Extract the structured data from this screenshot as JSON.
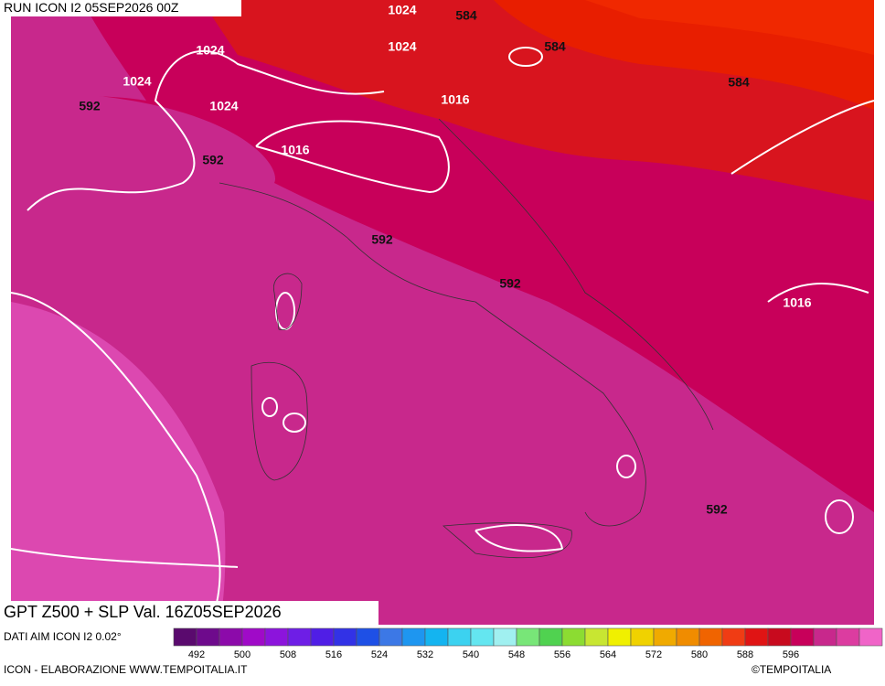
{
  "header": {
    "title": "RUN ICON I2 05SEP2026 00Z"
  },
  "contours": {
    "labels": [
      1024,
      584,
      1024,
      584,
      1024,
      1024,
      584,
      592,
      1024,
      592,
      1016,
      1016,
      592,
      592,
      1016,
      592
    ]
  },
  "footer": {
    "title": "GPT Z500 + SLP Val. 16Z05SEP2026",
    "source": "DATI AIM ICON I2 0.02°",
    "credit": "ICON - ELABORAZIONE WWW.TEMPOITALIA.IT",
    "copyright": "©TEMPOITALIA"
  },
  "colorbar": {
    "colors": [
      "#5a0a6e",
      "#6e0a8c",
      "#8c0aaa",
      "#a00ac8",
      "#8c14dc",
      "#6e1ee6",
      "#501ee6",
      "#3232e6",
      "#1e50e6",
      "#3c78e6",
      "#1e96f0",
      "#14b4f0",
      "#3cd2f0",
      "#64e6f0",
      "#a0f0f0",
      "#78e678",
      "#50d250",
      "#8cdc32",
      "#c8e632",
      "#f0f000",
      "#f0d200",
      "#f0aa00",
      "#f08c00",
      "#f06400",
      "#f03c14",
      "#e01414",
      "#c80a1e",
      "#c8005a",
      "#c8288c",
      "#dc3ca0",
      "#f064c8"
    ],
    "labels": [
      492,
      500,
      508,
      516,
      524,
      532,
      540,
      548,
      556,
      564,
      572,
      580,
      588,
      596
    ]
  }
}
